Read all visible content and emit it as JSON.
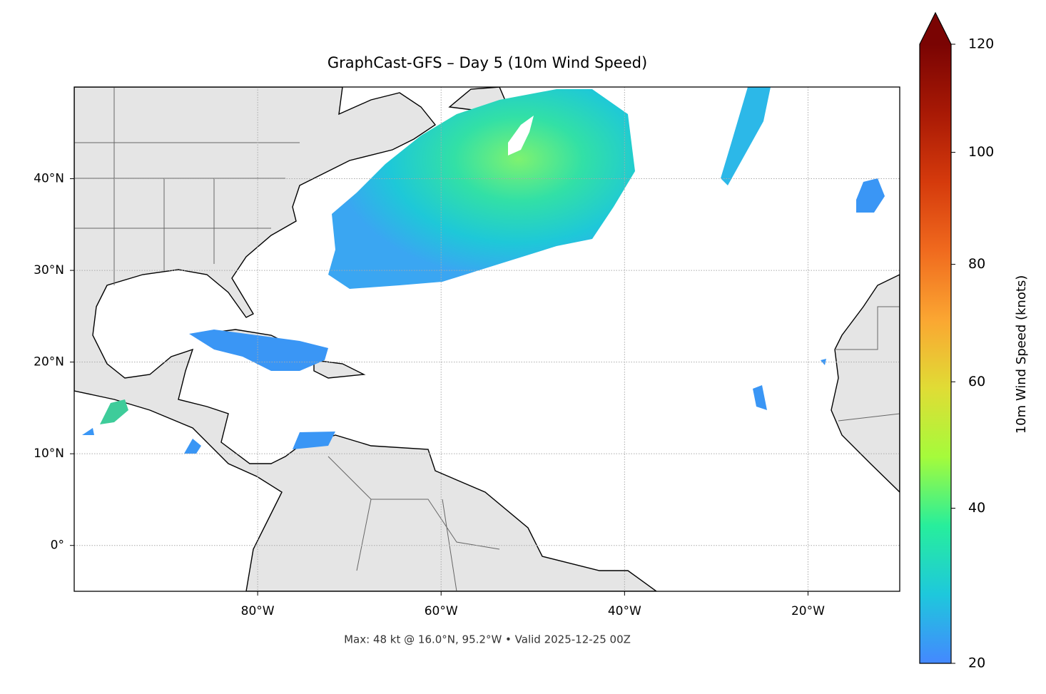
{
  "map": {
    "title": "GraphCast-GFS – Day 5 (10m Wind Speed)",
    "footer": "Max: 48 kt @ 16.0°N, 95.2°W • Valid 2025-12-25 00Z",
    "xlim": [
      -100,
      -10
    ],
    "ylim": [
      -5,
      50
    ],
    "xticks": [
      {
        "value": -80,
        "label": "80°W"
      },
      {
        "value": -60,
        "label": "60°W"
      },
      {
        "value": -40,
        "label": "40°W"
      },
      {
        "value": -20,
        "label": "20°W"
      }
    ],
    "yticks": [
      {
        "value": 0,
        "label": "0°"
      },
      {
        "value": 10,
        "label": "10°N"
      },
      {
        "value": 20,
        "label": "20°N"
      },
      {
        "value": 30,
        "label": "30°N"
      },
      {
        "value": 40,
        "label": "40°N"
      }
    ],
    "grid": true,
    "colorbar": {
      "label": "10m Wind Speed (knots)",
      "lim": [
        20,
        120
      ],
      "ticks": [
        20,
        40,
        60,
        80,
        100,
        120
      ],
      "gamma": 0.86,
      "extend": "max",
      "colors": [
        "#4488ff",
        "#1ec8dc",
        "#27ee9c",
        "#a5fb3b",
        "#e0dc35",
        "#fba632",
        "#f06a1e",
        "#d53a0c",
        "#a81905",
        "#7a0403"
      ]
    }
  }
}
